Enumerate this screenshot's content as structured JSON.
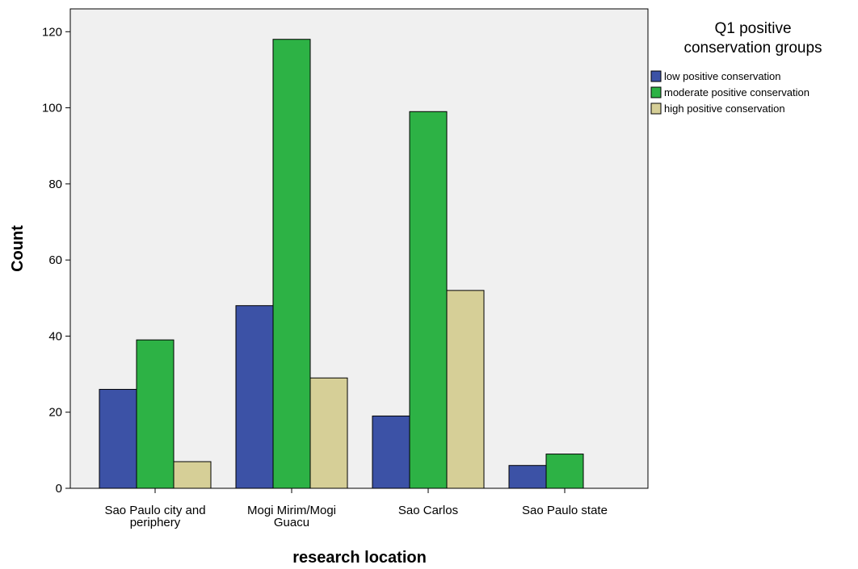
{
  "chart_data": {
    "type": "bar",
    "xlabel": "research location",
    "ylabel": "Count",
    "ylim": [
      0,
      126
    ],
    "yticks": [
      0,
      20,
      40,
      60,
      80,
      100,
      120
    ],
    "categories": [
      [
        "Sao Paulo city and",
        "periphery"
      ],
      [
        "Mogi Mirim/Mogi",
        "Guacu"
      ],
      [
        "Sao Carlos"
      ],
      [
        "Sao Paulo state"
      ]
    ],
    "legend": {
      "title": [
        "Q1 positive",
        "conservation groups"
      ],
      "position": "right"
    },
    "series": [
      {
        "name": "low positive conservation",
        "color": "#3c52a6",
        "values": [
          26,
          48,
          19,
          6
        ]
      },
      {
        "name": "moderate positive conservation",
        "color": "#2db245",
        "values": [
          39,
          118,
          99,
          9
        ]
      },
      {
        "name": "high positive conservation",
        "color": "#d6cf97",
        "values": [
          7,
          29,
          52,
          0
        ]
      }
    ],
    "plot_background": "#f0f0f0",
    "grid": false
  }
}
